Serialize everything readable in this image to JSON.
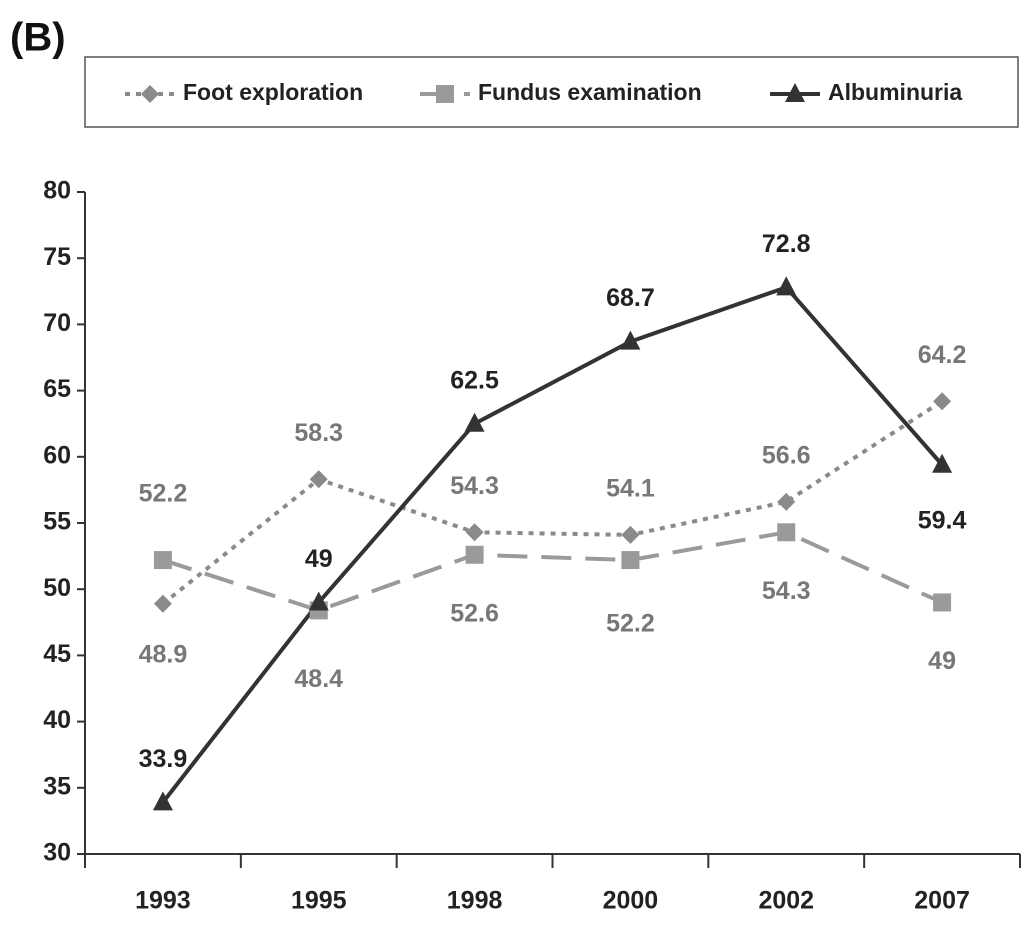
{
  "chart_data": {
    "type": "line",
    "panel_label": "(B)",
    "categories": [
      "1993",
      "1995",
      "1998",
      "2000",
      "2002",
      "2007"
    ],
    "series": [
      {
        "name": "Foot exploration",
        "color": "#8a8a8a",
        "dash": "dotted",
        "marker": "diamond",
        "values": [
          48.9,
          58.3,
          54.3,
          54.1,
          56.6,
          64.2
        ]
      },
      {
        "name": "Fundus examination",
        "color": "#9a9a9a",
        "dash": "dashed",
        "marker": "square",
        "values": [
          52.2,
          48.4,
          52.6,
          52.2,
          54.3,
          49
        ]
      },
      {
        "name": "Albuminuria",
        "color": "#333333",
        "dash": "solid",
        "marker": "triangle",
        "values": [
          33.9,
          49,
          62.5,
          68.7,
          72.8,
          59.4
        ]
      }
    ],
    "ylim": [
      30,
      80
    ],
    "yticks": [
      30,
      35,
      40,
      45,
      50,
      55,
      60,
      65,
      70,
      75,
      80
    ],
    "legend": "top",
    "grid": false
  }
}
